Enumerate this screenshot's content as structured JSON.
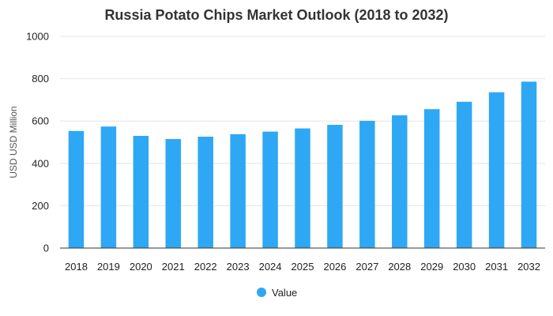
{
  "chart_data": {
    "type": "bar",
    "title": "Russia Potato Chips Market Outlook (2018 to 2032)",
    "xlabel": "",
    "ylabel": "USD USD Million",
    "ylim": [
      0,
      1000
    ],
    "yticks": [
      0,
      200,
      400,
      600,
      800,
      1000
    ],
    "categories": [
      "2018",
      "2019",
      "2020",
      "2021",
      "2022",
      "2023",
      "2024",
      "2025",
      "2026",
      "2027",
      "2028",
      "2029",
      "2030",
      "2031",
      "2032"
    ],
    "series": [
      {
        "name": "Value",
        "color": "#2ea8f4",
        "values": [
          553,
          574,
          530,
          515,
          526,
          538,
          550,
          565,
          582,
          601,
          627,
          656,
          691,
          736,
          786
        ]
      }
    ],
    "grid": true,
    "legend_position": "bottom-center"
  }
}
